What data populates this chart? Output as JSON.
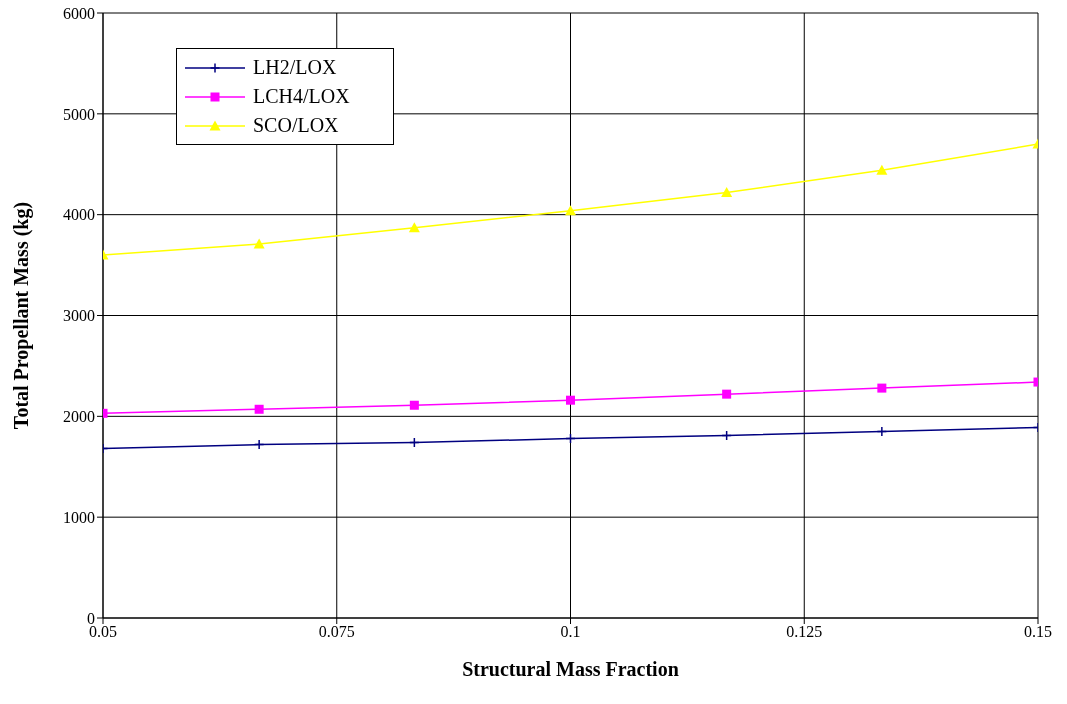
{
  "chart_data": {
    "type": "line",
    "xlabel": "Structural Mass Fraction",
    "ylabel": "Total Propellant Mass (kg)",
    "x": [
      0.05,
      0.0667,
      0.0833,
      0.1,
      0.1167,
      0.1333,
      0.15
    ],
    "series": [
      {
        "name": "LH2/LOX",
        "color": "#000080",
        "marker": "cross",
        "values": [
          1680,
          1720,
          1740,
          1780,
          1810,
          1850,
          1890
        ]
      },
      {
        "name": "LCH4/LOX",
        "color": "#ff00ff",
        "marker": "square",
        "values": [
          2030,
          2070,
          2110,
          2160,
          2220,
          2280,
          2340
        ]
      },
      {
        "name": "SCO/LOX",
        "color": "#ffff00",
        "marker": "triangle",
        "values": [
          3600,
          3710,
          3870,
          4040,
          4220,
          4440,
          4700
        ]
      }
    ],
    "xlim": [
      0.05,
      0.15
    ],
    "xticks": [
      0.05,
      0.075,
      0.1,
      0.125,
      0.15
    ],
    "ylim": [
      0,
      6000
    ],
    "yticks": [
      0,
      1000,
      2000,
      3000,
      4000,
      5000,
      6000
    ],
    "grid": true,
    "legend": "top left",
    "line_style": "solid"
  }
}
